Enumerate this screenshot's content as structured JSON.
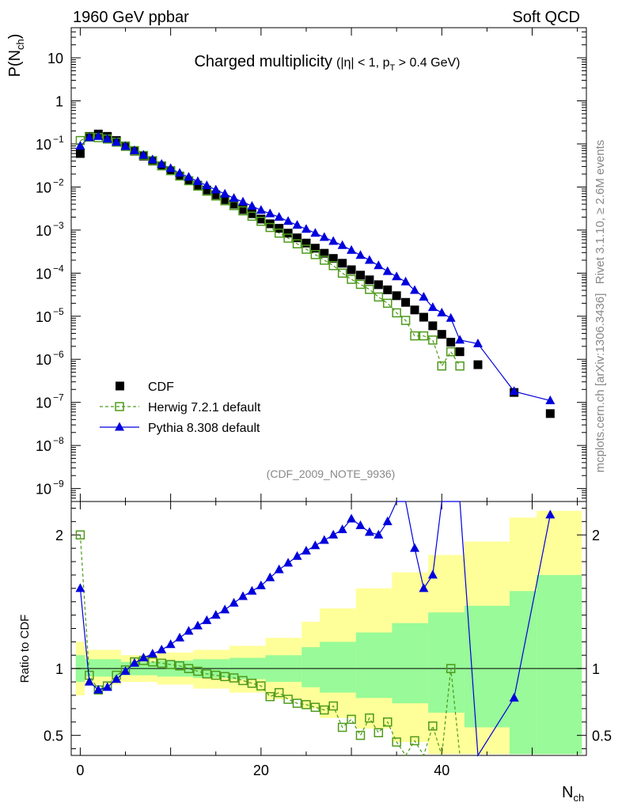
{
  "header": {
    "left": "1960 GeV ppbar",
    "right": "Soft QCD"
  },
  "title": {
    "main": "Charged multiplicity",
    "cut_open": "(|η| < 1, p",
    "cut_sub": "T",
    "cut_close": " > 0.4 GeV)"
  },
  "analysis_id": "(CDF_2009_NOTE_9936)",
  "side_labels": {
    "rivet": "Rivet 3.1.10, ≥ 2.6M events",
    "mcplots": "mcplots.cern.ch [arXiv:1306.3436]"
  },
  "colors": {
    "data": "#000000",
    "herwig": "#4d9a1a",
    "pythia": "#0000dd",
    "band_inner": "#98fa98",
    "band_outer": "#ffff99"
  },
  "chart_data": {
    "type": "scatter",
    "main": {
      "ylabel": {
        "base": "P(N",
        "sub": "ch",
        "close": ")"
      },
      "yscale": "log",
      "ylim": [
        5e-10,
        50
      ],
      "y_ticks": [
        {
          "value": 10,
          "label": "10"
        },
        {
          "value": 1,
          "label": "1"
        },
        {
          "value": 0.1,
          "label": "10",
          "exp": "−1"
        },
        {
          "value": 0.01,
          "label": "10",
          "exp": "−2"
        },
        {
          "value": 0.001,
          "label": "10",
          "exp": "−3"
        },
        {
          "value": 0.0001,
          "label": "10",
          "exp": "−4"
        },
        {
          "value": 1e-05,
          "label": "10",
          "exp": "−5"
        },
        {
          "value": 1e-06,
          "label": "10",
          "exp": "−6"
        },
        {
          "value": 1e-07,
          "label": "10",
          "exp": "−7"
        },
        {
          "value": 1e-08,
          "label": "10",
          "exp": "−8"
        },
        {
          "value": 1e-09,
          "label": "10",
          "exp": "−9"
        }
      ],
      "legend_position": "bottom-left",
      "series": [
        {
          "name": "CDF",
          "marker": "filled-square",
          "x": [
            0,
            1,
            2,
            3,
            4,
            5,
            6,
            7,
            8,
            9,
            10,
            11,
            12,
            13,
            14,
            15,
            16,
            17,
            18,
            19,
            20,
            21,
            22,
            23,
            24,
            25,
            26,
            27,
            28,
            29,
            30,
            31,
            32,
            33,
            34,
            35,
            36,
            37,
            38,
            39,
            40,
            41,
            42,
            44,
            48,
            52
          ],
          "y": [
            0.06,
            0.15,
            0.17,
            0.15,
            0.12,
            0.09,
            0.068,
            0.052,
            0.04,
            0.031,
            0.024,
            0.018,
            0.014,
            0.011,
            0.0085,
            0.0066,
            0.0051,
            0.004,
            0.003,
            0.0024,
            0.0018,
            0.0014,
            0.0011,
            0.00085,
            0.00066,
            0.0005,
            0.00038,
            0.00029,
            0.00022,
            0.00017,
            0.00012,
            9e-05,
            7e-05,
            5.4e-05,
            4.1e-05,
            3e-05,
            2.1e-05,
            1.4e-05,
            9.5e-06,
            6e-06,
            3.8e-06,
            2.5e-06,
            1.5e-06,
            7.5e-07,
            1.7e-07,
            5.5e-08
          ]
        },
        {
          "name": "Herwig 7.2.1 default",
          "marker": "open-square",
          "line": "dashed",
          "x": [
            0,
            1,
            2,
            3,
            4,
            5,
            6,
            7,
            8,
            9,
            10,
            11,
            12,
            13,
            14,
            15,
            16,
            17,
            18,
            19,
            20,
            21,
            22,
            23,
            24,
            25,
            26,
            27,
            28,
            29,
            30,
            31,
            32,
            33,
            34,
            35,
            36,
            37,
            38,
            39,
            40,
            41,
            42
          ],
          "y": [
            0.12,
            0.145,
            0.14,
            0.13,
            0.11,
            0.088,
            0.07,
            0.054,
            0.041,
            0.031,
            0.024,
            0.018,
            0.014,
            0.0105,
            0.008,
            0.0062,
            0.0048,
            0.0037,
            0.0028,
            0.0021,
            0.0016,
            0.00115,
            0.00085,
            0.00065,
            0.00048,
            0.00036,
            0.00027,
            0.0002,
            0.00015,
            0.0001,
            7.2e-05,
            5.5e-05,
            4.2e-05,
            2.8e-05,
            2e-05,
            1.2e-05,
            8e-06,
            3.5e-06,
            3.5e-06,
            2.8e-06,
            7e-07,
            1.5e-06,
            7e-07
          ]
        },
        {
          "name": "Pythia 8.308 default",
          "marker": "filled-triangle",
          "line": "solid",
          "x": [
            0,
            1,
            2,
            3,
            4,
            5,
            6,
            7,
            8,
            9,
            10,
            11,
            12,
            13,
            14,
            15,
            16,
            17,
            18,
            19,
            20,
            21,
            22,
            23,
            24,
            25,
            26,
            27,
            28,
            29,
            30,
            31,
            32,
            33,
            34,
            35,
            36,
            37,
            38,
            39,
            40,
            41,
            42,
            44,
            48,
            52
          ],
          "y": [
            0.09,
            0.14,
            0.15,
            0.13,
            0.11,
            0.088,
            0.07,
            0.055,
            0.043,
            0.034,
            0.027,
            0.021,
            0.017,
            0.0135,
            0.0108,
            0.0086,
            0.0069,
            0.0055,
            0.0045,
            0.0036,
            0.0029,
            0.0024,
            0.002,
            0.0016,
            0.0013,
            0.00105,
            0.00085,
            0.00068,
            0.00055,
            0.00044,
            0.00034,
            0.00026,
            0.0002,
            0.00015,
            0.00011,
            8.3e-05,
            6.3e-05,
            4e-05,
            2.8e-05,
            1.6e-05,
            1.2e-05,
            9e-06,
            2.8e-06,
            2.3e-06,
            1.8e-07,
            1.1e-07
          ]
        }
      ]
    },
    "ratio": {
      "ylabel": "Ratio to CDF",
      "ylim": [
        0.35,
        2.25
      ],
      "left_ticks": [
        {
          "value": 2,
          "label": "2"
        },
        {
          "value": 1,
          "label": "1"
        },
        {
          "value": 0.5,
          "label": "0.5"
        }
      ],
      "right_ticks": [
        {
          "value": 2,
          "label": "2"
        },
        {
          "value": 1,
          "label": "1"
        },
        {
          "value": 0.5,
          "label": "0.5"
        }
      ],
      "band_x_edges": [
        -0.5,
        0.5,
        4.5,
        8.5,
        12.5,
        16.5,
        20.5,
        24.5,
        26.5,
        30.5,
        34.5,
        38.5,
        42.5,
        47.5,
        50.5,
        55.5
      ],
      "band_inner": [
        [
          0.9,
          1.1
        ],
        [
          0.94,
          1.07
        ],
        [
          0.95,
          1.05
        ],
        [
          0.94,
          1.06
        ],
        [
          0.93,
          1.07
        ],
        [
          0.92,
          1.08
        ],
        [
          0.9,
          1.1
        ],
        [
          0.86,
          1.16
        ],
        [
          0.82,
          1.2
        ],
        [
          0.78,
          1.27
        ],
        [
          0.74,
          1.34
        ],
        [
          0.67,
          1.42
        ],
        [
          0.56,
          1.47
        ],
        [
          0.36,
          1.58
        ],
        [
          0.36,
          1.7
        ]
      ],
      "band_outer": [
        [
          0.8,
          1.2
        ],
        [
          0.88,
          1.14
        ],
        [
          0.9,
          1.1
        ],
        [
          0.88,
          1.12
        ],
        [
          0.85,
          1.14
        ],
        [
          0.82,
          1.17
        ],
        [
          0.77,
          1.23
        ],
        [
          0.7,
          1.35
        ],
        [
          0.63,
          1.45
        ],
        [
          0.55,
          1.6
        ],
        [
          0.45,
          1.72
        ],
        [
          0.36,
          1.85
        ],
        [
          0.36,
          1.95
        ],
        [
          0.36,
          2.13
        ],
        [
          0.36,
          2.18
        ]
      ],
      "series": [
        {
          "name": "Herwig 7.2.1 default",
          "x": [
            0,
            1,
            2,
            3,
            4,
            5,
            6,
            7,
            8,
            9,
            10,
            11,
            12,
            13,
            14,
            15,
            16,
            17,
            18,
            19,
            20,
            21,
            22,
            23,
            24,
            25,
            26,
            27,
            28,
            29,
            30,
            31,
            32,
            33,
            34,
            35,
            36,
            37,
            38,
            39,
            40,
            41,
            42
          ],
          "y": [
            2.0,
            0.95,
            0.84,
            0.87,
            0.95,
            0.99,
            1.05,
            1.06,
            1.05,
            1.04,
            1.03,
            1.02,
            1.0,
            0.98,
            0.96,
            0.95,
            0.94,
            0.93,
            0.91,
            0.89,
            0.87,
            0.79,
            0.82,
            0.77,
            0.74,
            0.73,
            0.71,
            0.69,
            0.72,
            0.56,
            0.62,
            0.5,
            0.63,
            0.52,
            0.6,
            0.45,
            0.3,
            0.46,
            0.2,
            0.57,
            0.2,
            1.0,
            0.3
          ]
        },
        {
          "name": "Pythia 8.308 default",
          "x": [
            0,
            1,
            2,
            3,
            4,
            5,
            6,
            7,
            8,
            9,
            10,
            11,
            12,
            13,
            14,
            15,
            16,
            17,
            18,
            19,
            20,
            21,
            22,
            23,
            24,
            25,
            26,
            27,
            28,
            29,
            30,
            31,
            32,
            33,
            34,
            35,
            36,
            37,
            38,
            39,
            40,
            41,
            42,
            44,
            48,
            52
          ],
          "y": [
            1.6,
            0.9,
            0.84,
            0.86,
            0.92,
            0.98,
            1.04,
            1.08,
            1.11,
            1.14,
            1.18,
            1.23,
            1.28,
            1.32,
            1.36,
            1.4,
            1.44,
            1.49,
            1.54,
            1.58,
            1.62,
            1.68,
            1.74,
            1.79,
            1.84,
            1.88,
            1.92,
            1.96,
            2.0,
            2.04,
            2.12,
            2.07,
            2.02,
            2.0,
            2.1,
            2.4,
            2.5,
            1.9,
            1.6,
            1.7,
            2.4,
            2.7,
            2.3,
            0.3,
            0.78,
            2.15
          ]
        }
      ]
    },
    "xaxis": {
      "label": {
        "base": "N",
        "sub": "ch"
      },
      "xlim": [
        -1,
        56
      ],
      "ticks": [
        {
          "value": 0,
          "label": "0"
        },
        {
          "value": 20,
          "label": "20"
        },
        {
          "value": 40,
          "label": "40"
        }
      ]
    }
  }
}
